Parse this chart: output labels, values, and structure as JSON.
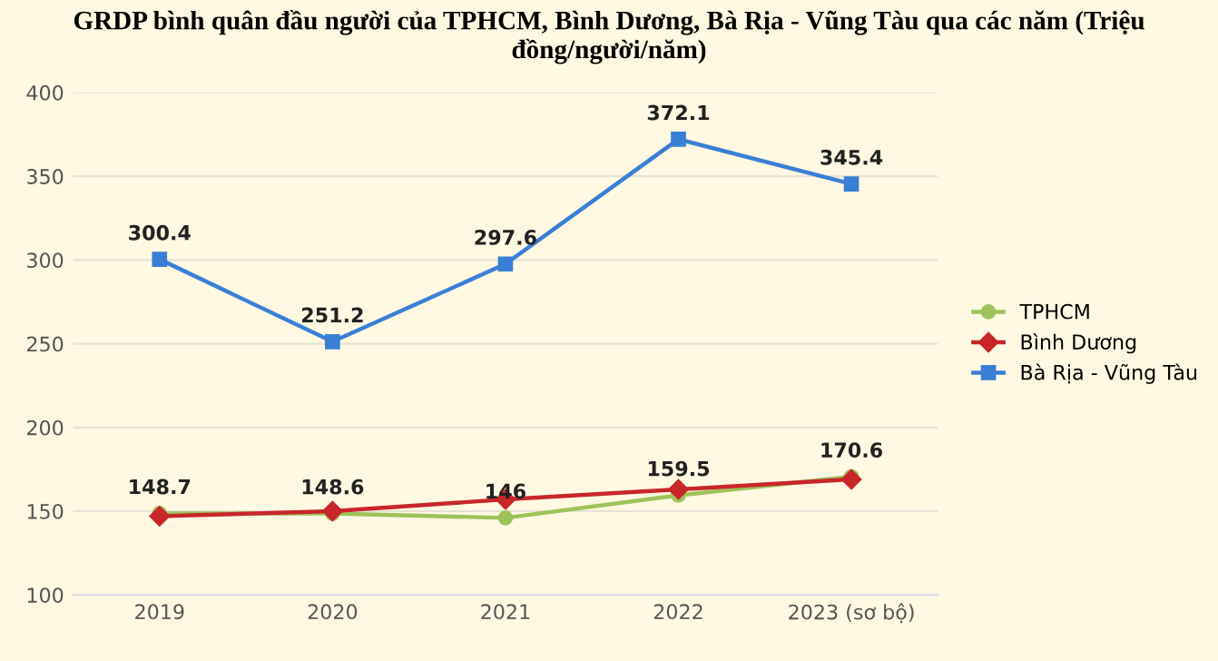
{
  "chart_data": {
    "type": "line",
    "title": "GRDP bình quân đầu người của TPHCM, Bình Dương, Bà Rịa - Vũng Tàu qua các năm (Triệu đồng/người/năm)",
    "categories": [
      "2019",
      "2020",
      "2021",
      "2022",
      "2023 (sơ bộ)"
    ],
    "series": [
      {
        "name": "TPHCM",
        "color": "#9dc35a",
        "marker": "circle",
        "values": [
          148.7,
          148.6,
          146,
          159.5,
          170.6
        ],
        "value_labels": [
          "148.7",
          "148.6",
          "146",
          "159.5",
          "170.6"
        ]
      },
      {
        "name": "Bình Dương",
        "color": "#c8262a",
        "marker": "diamond",
        "values": [
          147,
          150,
          157,
          163,
          169
        ]
      },
      {
        "name": "Bà Rịa - Vũng Tàu",
        "color": "#3a7fd5",
        "marker": "square",
        "values": [
          300.4,
          251.2,
          297.6,
          372.1,
          345.4
        ],
        "value_labels": [
          "300.4",
          "251.2",
          "297.6",
          "372.1",
          "345.4"
        ]
      }
    ],
    "ylim": [
      100,
      400
    ],
    "yticks": [
      100,
      150,
      200,
      250,
      300,
      350,
      400
    ],
    "grid": "y",
    "legend": "right"
  }
}
